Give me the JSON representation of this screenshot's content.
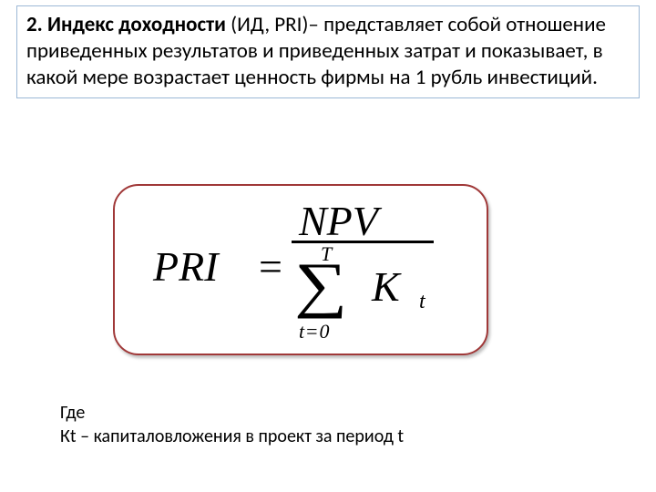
{
  "definition": {
    "title_bold": "2. Индекс доходности ",
    "title_rest": "(ИД, PRI)– представляет собой отношение приведенных результатов и приведенных затрат и показывает, в какой мере возрастает ценность фирмы на 1 рубль инвестиций."
  },
  "formula": {
    "lhs": "PRI",
    "equals": "=",
    "numerator": "NPV",
    "sigma": "∑",
    "sum_upper": "T",
    "sum_lower_var": "t",
    "sum_lower_eq": "=",
    "sum_lower_val": "0",
    "K": "K",
    "K_sub": "t",
    "box_border_color": "#a03838",
    "text_color": "#000000",
    "font_family": "Times New Roman"
  },
  "legend": {
    "line1": "Где",
    "line2": "Кt – капиталовложения в проект за период t"
  },
  "style": {
    "def_border_color": "#9cb8d6",
    "background": "#ffffff",
    "body_font": "Calibri"
  }
}
